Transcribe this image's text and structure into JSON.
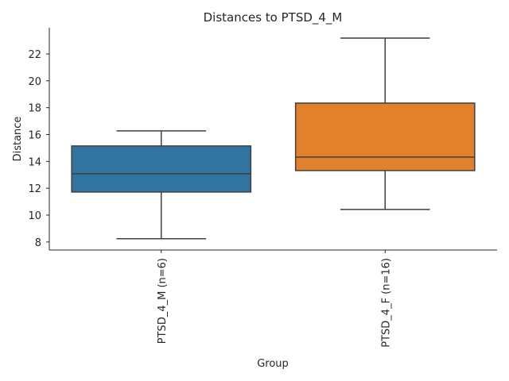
{
  "chart_data": {
    "type": "box",
    "title": "Distances to PTSD_4_M",
    "xlabel": "Group",
    "ylabel": "Distance",
    "ylim": [
      7.4,
      23.95
    ],
    "yticks": [
      8,
      10,
      12,
      14,
      16,
      18,
      20,
      22
    ],
    "grid": false,
    "categories": [
      "PTSD_4_M (n=6)",
      "PTSD_4_F (n=16)"
    ],
    "colors": [
      "#3274a1",
      "#e1812c"
    ],
    "boxes": [
      {
        "whisker_low": 8.24,
        "q1": 11.72,
        "median": 13.08,
        "q3": 15.15,
        "whisker_high": 16.27
      },
      {
        "whisker_low": 10.42,
        "q1": 13.32,
        "median": 14.32,
        "q3": 18.34,
        "whisker_high": 23.18
      }
    ]
  }
}
